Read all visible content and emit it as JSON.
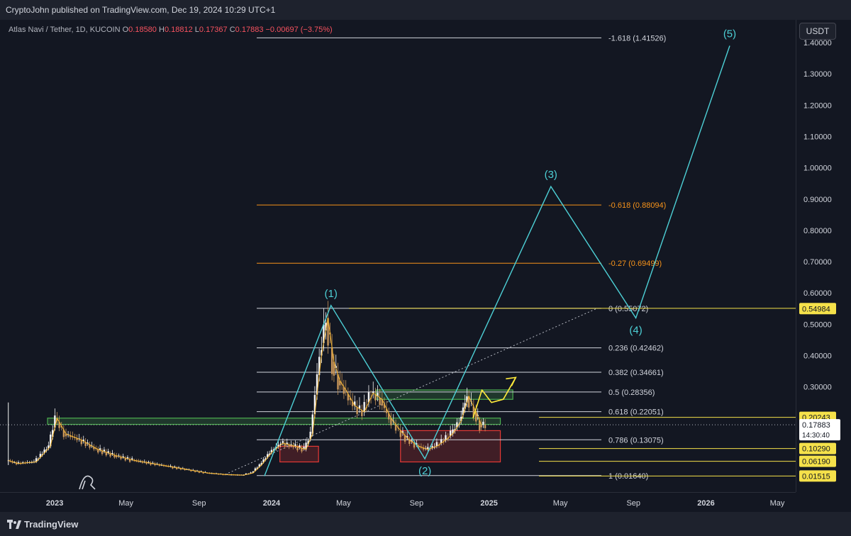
{
  "header": {
    "publisher_text": "CryptoJohn published on TradingView.com, Dec 19, 2024 10:29 UTC+1"
  },
  "symbol": {
    "name": "Atlas Navi / Tether, 1D, KUCOIN",
    "open_label": "O",
    "open": "0.18580",
    "high_label": "H",
    "high": "0.18812",
    "low_label": "L",
    "low": "0.17367",
    "close_label": "C",
    "close": "0.17883",
    "change": "−0.00697 (−3.75%)"
  },
  "currency_button": "USDT",
  "footer": {
    "brand": "TradingView"
  },
  "colors": {
    "background": "#131722",
    "candle_up": "#f5f5f5",
    "candle_down": "#c8965a",
    "wave_line": "#4dd0d6",
    "fib_white": "#d1d4dc",
    "fib_orange": "#f7931a",
    "support_green": "#4caf50",
    "support_red": "#e53935",
    "price_tag_yellow": "#f5e14a",
    "projection_yellow": "#ffeb3b"
  },
  "chart_data": {
    "type": "line",
    "title": "",
    "price_axis": {
      "min": 0,
      "max": 1.45,
      "ticks": [
        "0.10000",
        "0.20000",
        "0.30000",
        "0.40000",
        "0.50000",
        "0.60000",
        "0.70000",
        "0.80000",
        "0.90000",
        "1.00000",
        "1.10000",
        "1.20000",
        "1.30000",
        "1.40000"
      ],
      "tick_values": [
        0.1,
        0.2,
        0.3,
        0.4,
        0.5,
        0.6,
        0.7,
        0.8,
        0.9,
        1.0,
        1.1,
        1.2,
        1.3,
        1.4
      ]
    },
    "time_axis": {
      "labels": [
        "2023",
        "May",
        "Sep",
        "2024",
        "May",
        "Sep",
        "2025",
        "May",
        "Sep",
        "2026",
        "May"
      ],
      "dates": [
        "2023-01-01",
        "2023-05-01",
        "2023-09-01",
        "2024-01-01",
        "2024-05-01",
        "2024-09-01",
        "2025-01-01",
        "2025-05-01",
        "2025-09-01",
        "2026-01-01",
        "2026-05-01"
      ],
      "start": "2022-10-01",
      "end": "2026-06-01"
    },
    "price_series": {
      "name": "",
      "x": [
        "2022-10-15",
        "2022-11-01",
        "2022-12-01",
        "2022-12-25",
        "2023-01-05",
        "2023-01-20",
        "2023-02-15",
        "2023-03-15",
        "2023-04-15",
        "2023-05-15",
        "2023-06-15",
        "2023-07-15",
        "2023-08-15",
        "2023-09-15",
        "2023-10-15",
        "2023-11-15",
        "2023-12-01",
        "2023-12-15",
        "2024-01-01",
        "2024-01-20",
        "2024-02-10",
        "2024-02-28",
        "2024-03-10",
        "2024-03-25",
        "2024-04-05",
        "2024-04-15",
        "2024-04-25",
        "2024-05-05",
        "2024-05-20",
        "2024-06-05",
        "2024-06-20",
        "2024-07-05",
        "2024-07-20",
        "2024-08-05",
        "2024-08-20",
        "2024-09-05",
        "2024-09-20",
        "2024-10-05",
        "2024-10-20",
        "2024-11-01",
        "2024-11-15",
        "2024-11-28",
        "2024-12-10",
        "2024-12-19"
      ],
      "y": [
        0.065,
        0.055,
        0.06,
        0.11,
        0.2,
        0.15,
        0.13,
        0.1,
        0.08,
        0.065,
        0.055,
        0.045,
        0.035,
        0.025,
        0.02,
        0.018,
        0.025,
        0.05,
        0.09,
        0.12,
        0.11,
        0.1,
        0.15,
        0.4,
        0.52,
        0.38,
        0.32,
        0.29,
        0.24,
        0.22,
        0.28,
        0.26,
        0.2,
        0.16,
        0.13,
        0.11,
        0.1,
        0.11,
        0.13,
        0.15,
        0.19,
        0.27,
        0.22,
        0.17883
      ]
    },
    "wave_path": {
      "labels": [
        "(1)",
        "(2)",
        "(3)",
        "(4)",
        "(5)"
      ],
      "x": [
        "2023-12-20",
        "2024-04-10",
        "2024-09-15",
        "2025-04-15",
        "2025-09-05",
        "2026-02-10"
      ],
      "y": [
        0.015,
        0.56,
        0.07,
        0.94,
        0.52,
        1.39
      ]
    },
    "fib_levels": [
      {
        "label": "-1.618 (1.41526)",
        "value": 1.41526,
        "color": "#d1d4dc"
      },
      {
        "label": "-0.618 (0.88094)",
        "value": 0.88094,
        "color": "#f7931a"
      },
      {
        "label": "-0.27 (0.69499)",
        "value": 0.69499,
        "color": "#f7931a"
      },
      {
        "label": "0 (0.55072)",
        "value": 0.55072,
        "color": "#d1d4dc"
      },
      {
        "label": "0.236 (0.42462)",
        "value": 0.42462,
        "color": "#d1d4dc"
      },
      {
        "label": "0.382 (0.34661)",
        "value": 0.34661,
        "color": "#d1d4dc"
      },
      {
        "label": "0.5 (0.28356)",
        "value": 0.28356,
        "color": "#d1d4dc"
      },
      {
        "label": "0.618 (0.22051)",
        "value": 0.22051,
        "color": "#d1d4dc"
      },
      {
        "label": "0.786 (0.13075)",
        "value": 0.13075,
        "color": "#d1d4dc"
      },
      {
        "label": "1 (0.01640)",
        "value": 0.0164,
        "color": "#d1d4dc"
      }
    ],
    "price_tags": [
      {
        "label": "0.54984",
        "value": 0.54984
      },
      {
        "label": "0.20243",
        "value": 0.20243
      },
      {
        "label": "0.10290",
        "value": 0.1029
      },
      {
        "label": "0.06190",
        "value": 0.0619
      },
      {
        "label": "0.01515",
        "value": 0.01515
      }
    ],
    "last_price": {
      "label": "0.17883",
      "value": 0.17883,
      "countdown": "14:30:40"
    },
    "zones": [
      {
        "kind": "green",
        "x0": "2022-12-20",
        "x1": "2025-01-20",
        "y0": 0.18,
        "y1": 0.2
      },
      {
        "kind": "green",
        "x0": "2024-06-25",
        "x1": "2025-02-10",
        "y0": 0.26,
        "y1": 0.29
      },
      {
        "kind": "red",
        "x0": "2024-01-15",
        "x1": "2024-03-20",
        "y0": 0.06,
        "y1": 0.11
      },
      {
        "kind": "red",
        "x0": "2024-08-05",
        "x1": "2025-01-20",
        "y0": 0.06,
        "y1": 0.16
      }
    ],
    "projection": {
      "x": [
        "2024-12-05",
        "2024-12-20",
        "2025-01-05",
        "2025-01-25",
        "2025-02-15"
      ],
      "y": [
        0.2,
        0.29,
        0.25,
        0.26,
        0.33
      ]
    },
    "trendline": {
      "x": [
        "2023-10-15",
        "2025-07-01"
      ],
      "y": [
        0.02,
        0.55
      ]
    },
    "grid": false,
    "legend": "none"
  }
}
